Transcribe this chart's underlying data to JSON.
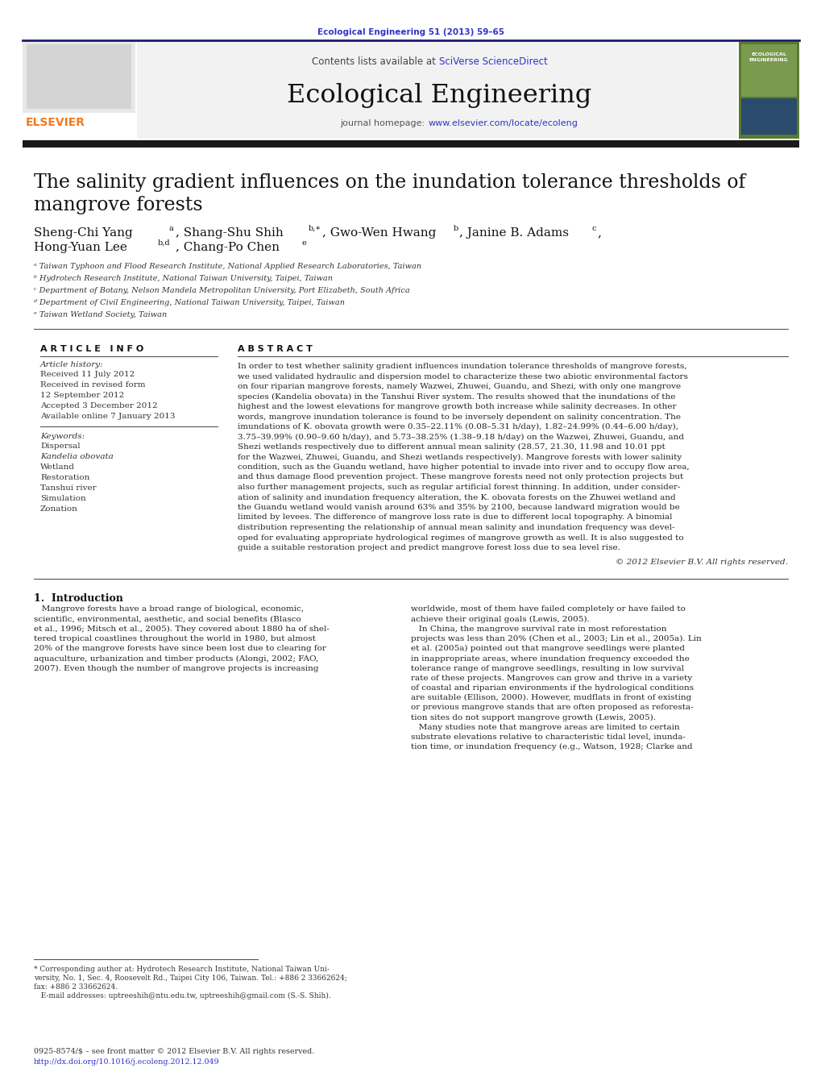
{
  "journal_ref": "Ecological Engineering 51 (2013) 59–65",
  "journal_name": "Ecological Engineering",
  "contents_text_plain": "Contents lists available at ",
  "contents_text_link": "SciVerse ScienceDirect",
  "journal_url_plain": "journal homepage: ",
  "journal_url_link": "www.elsevier.com/locate/ecoleng",
  "paper_title_line1": "The salinity gradient influences on the inundation tolerance thresholds of",
  "paper_title_line2": "mangrove forests",
  "affiliations": [
    "ᵃ Taiwan Typhoon and Flood Research Institute, National Applied Research Laboratories, Taiwan",
    "ᵇ Hydrotech Research Institute, National Taiwan University, Taipei, Taiwan",
    "ᶜ Department of Botany, Nelson Mandela Metropolitan University, Port Elizabeth, South Africa",
    "ᵈ Department of Civil Engineering, National Taiwan University, Taipei, Taiwan",
    "ᵉ Taiwan Wetland Society, Taiwan"
  ],
  "article_history": [
    "Received 11 July 2012",
    "Received in revised form",
    "12 September 2012",
    "Accepted 3 December 2012",
    "Available online 7 January 2013"
  ],
  "keywords": [
    "Dispersal",
    "Kandelia obovata",
    "Wetland",
    "Restoration",
    "Tanshui river",
    "Simulation",
    "Zonation"
  ],
  "keywords_italic": [
    false,
    true,
    false,
    false,
    false,
    false,
    false
  ],
  "abstract_lines": [
    "In order to test whether salinity gradient influences inundation tolerance thresholds of mangrove forests,",
    "we used validated hydraulic and dispersion model to characterize these two abiotic environmental factors",
    "on four riparian mangrove forests, namely Wazwei, Zhuwei, Guandu, and Shezi, with only one mangrove",
    "species (Kandelia obovata) in the Tanshui River system. The results showed that the inundations of the",
    "highest and the lowest elevations for mangrove growth both increase while salinity decreases. In other",
    "words, mangrove inundation tolerance is found to be inversely dependent on salinity concentration. The",
    "imundations of K. obovata growth were 0.35–22.11% (0.08–5.31 h/day), 1.82–24.99% (0.44–6.00 h/day),",
    "3.75–39.99% (0.90–9.60 h/day), and 5.73–38.25% (1.38–9.18 h/day) on the Wazwei, Zhuwei, Guandu, and",
    "Shezi wetlands respectively due to different annual mean salinity (28.57, 21.30, 11.98 and 10.01 ppt",
    "for the Wazwei, Zhuwei, Guandu, and Shezi wetlands respectively). Mangrove forests with lower salinity",
    "condition, such as the Guandu wetland, have higher potential to invade into river and to occupy flow area,",
    "and thus damage flood prevention project. These mangrove forests need not only protection projects but",
    "also further management projects, such as regular artificial forest thinning. In addition, under consider-",
    "ation of salinity and inundation frequency alteration, the K. obovata forests on the Zhuwei wetland and",
    "the Guandu wetland would vanish around 63% and 35% by 2100, because landward migration would be",
    "limited by levees. The difference of mangrove loss rate is due to different local topography. A binomial",
    "distribution representing the relationship of annual mean salinity and inundation frequency was devel-",
    "oped for evaluating appropriate hydrological regimes of mangrove growth as well. It is also suggested to",
    "guide a suitable restoration project and predict mangrove forest loss due to sea level rise."
  ],
  "copyright": "© 2012 Elsevier B.V. All rights reserved.",
  "intro_title": "1.  Introduction",
  "intro_col1_lines": [
    "   Mangrove forests have a broad range of biological, economic,",
    "scientific, environmental, aesthetic, and social benefits (Blasco",
    "et al., 1996; Mitsch et al., 2005). They covered about 1880 ha of shel-",
    "tered tropical coastlines throughout the world in 1980, but almost",
    "20% of the mangrove forests have since been lost due to clearing for",
    "aquaculture, urbanization and timber products (Alongi, 2002; FAO,",
    "2007). Even though the number of mangrove projects is increasing"
  ],
  "intro_col2_lines": [
    "worldwide, most of them have failed completely or have failed to",
    "achieve their original goals (Lewis, 2005).",
    "   In China, the mangrove survival rate in most reforestation",
    "projects was less than 20% (Chen et al., 2003; Lin et al., 2005a). Lin",
    "et al. (2005a) pointed out that mangrove seedlings were planted",
    "in inappropriate areas, where inundation frequency exceeded the",
    "tolerance range of mangrove seedlings, resulting in low survival",
    "rate of these projects. Mangroves can grow and thrive in a variety",
    "of coastal and riparian environments if the hydrological conditions",
    "are suitable (Ellison, 2000). However, mudflats in front of existing",
    "or previous mangrove stands that are often proposed as reforesta-",
    "tion sites do not support mangrove growth (Lewis, 2005).",
    "   Many studies note that mangrove areas are limited to certain",
    "substrate elevations relative to characteristic tidal level, inunda-",
    "tion time, or inundation frequency (e.g., Watson, 1928; Clarke and"
  ],
  "footnote_lines": [
    "* Corresponding author at: Hydrotech Research Institute, National Taiwan Uni-",
    "versity, No. 1, Sec. 4, Roosevelt Rd., Taipei City 106, Taiwan. Tel.: +886 2 33662624;",
    "fax: +886 2 33662624.",
    "   E-mail addresses: uptreeshih@ntu.edu.tw, uptreeshih@gmail.com (S.-S. Shih)."
  ],
  "issn_line1": "0925-8574/$ – see front matter © 2012 Elsevier B.V. All rights reserved.",
  "issn_line2": "http://dx.doi.org/10.1016/j.ecoleng.2012.12.049",
  "bg_color": "#ffffff",
  "dark_line_color": "#1a1a6e",
  "link_color": "#3333cc",
  "journal_ref_color": "#3333cc",
  "elsevier_orange": "#f47920",
  "header_gray": "#f2f2f2"
}
